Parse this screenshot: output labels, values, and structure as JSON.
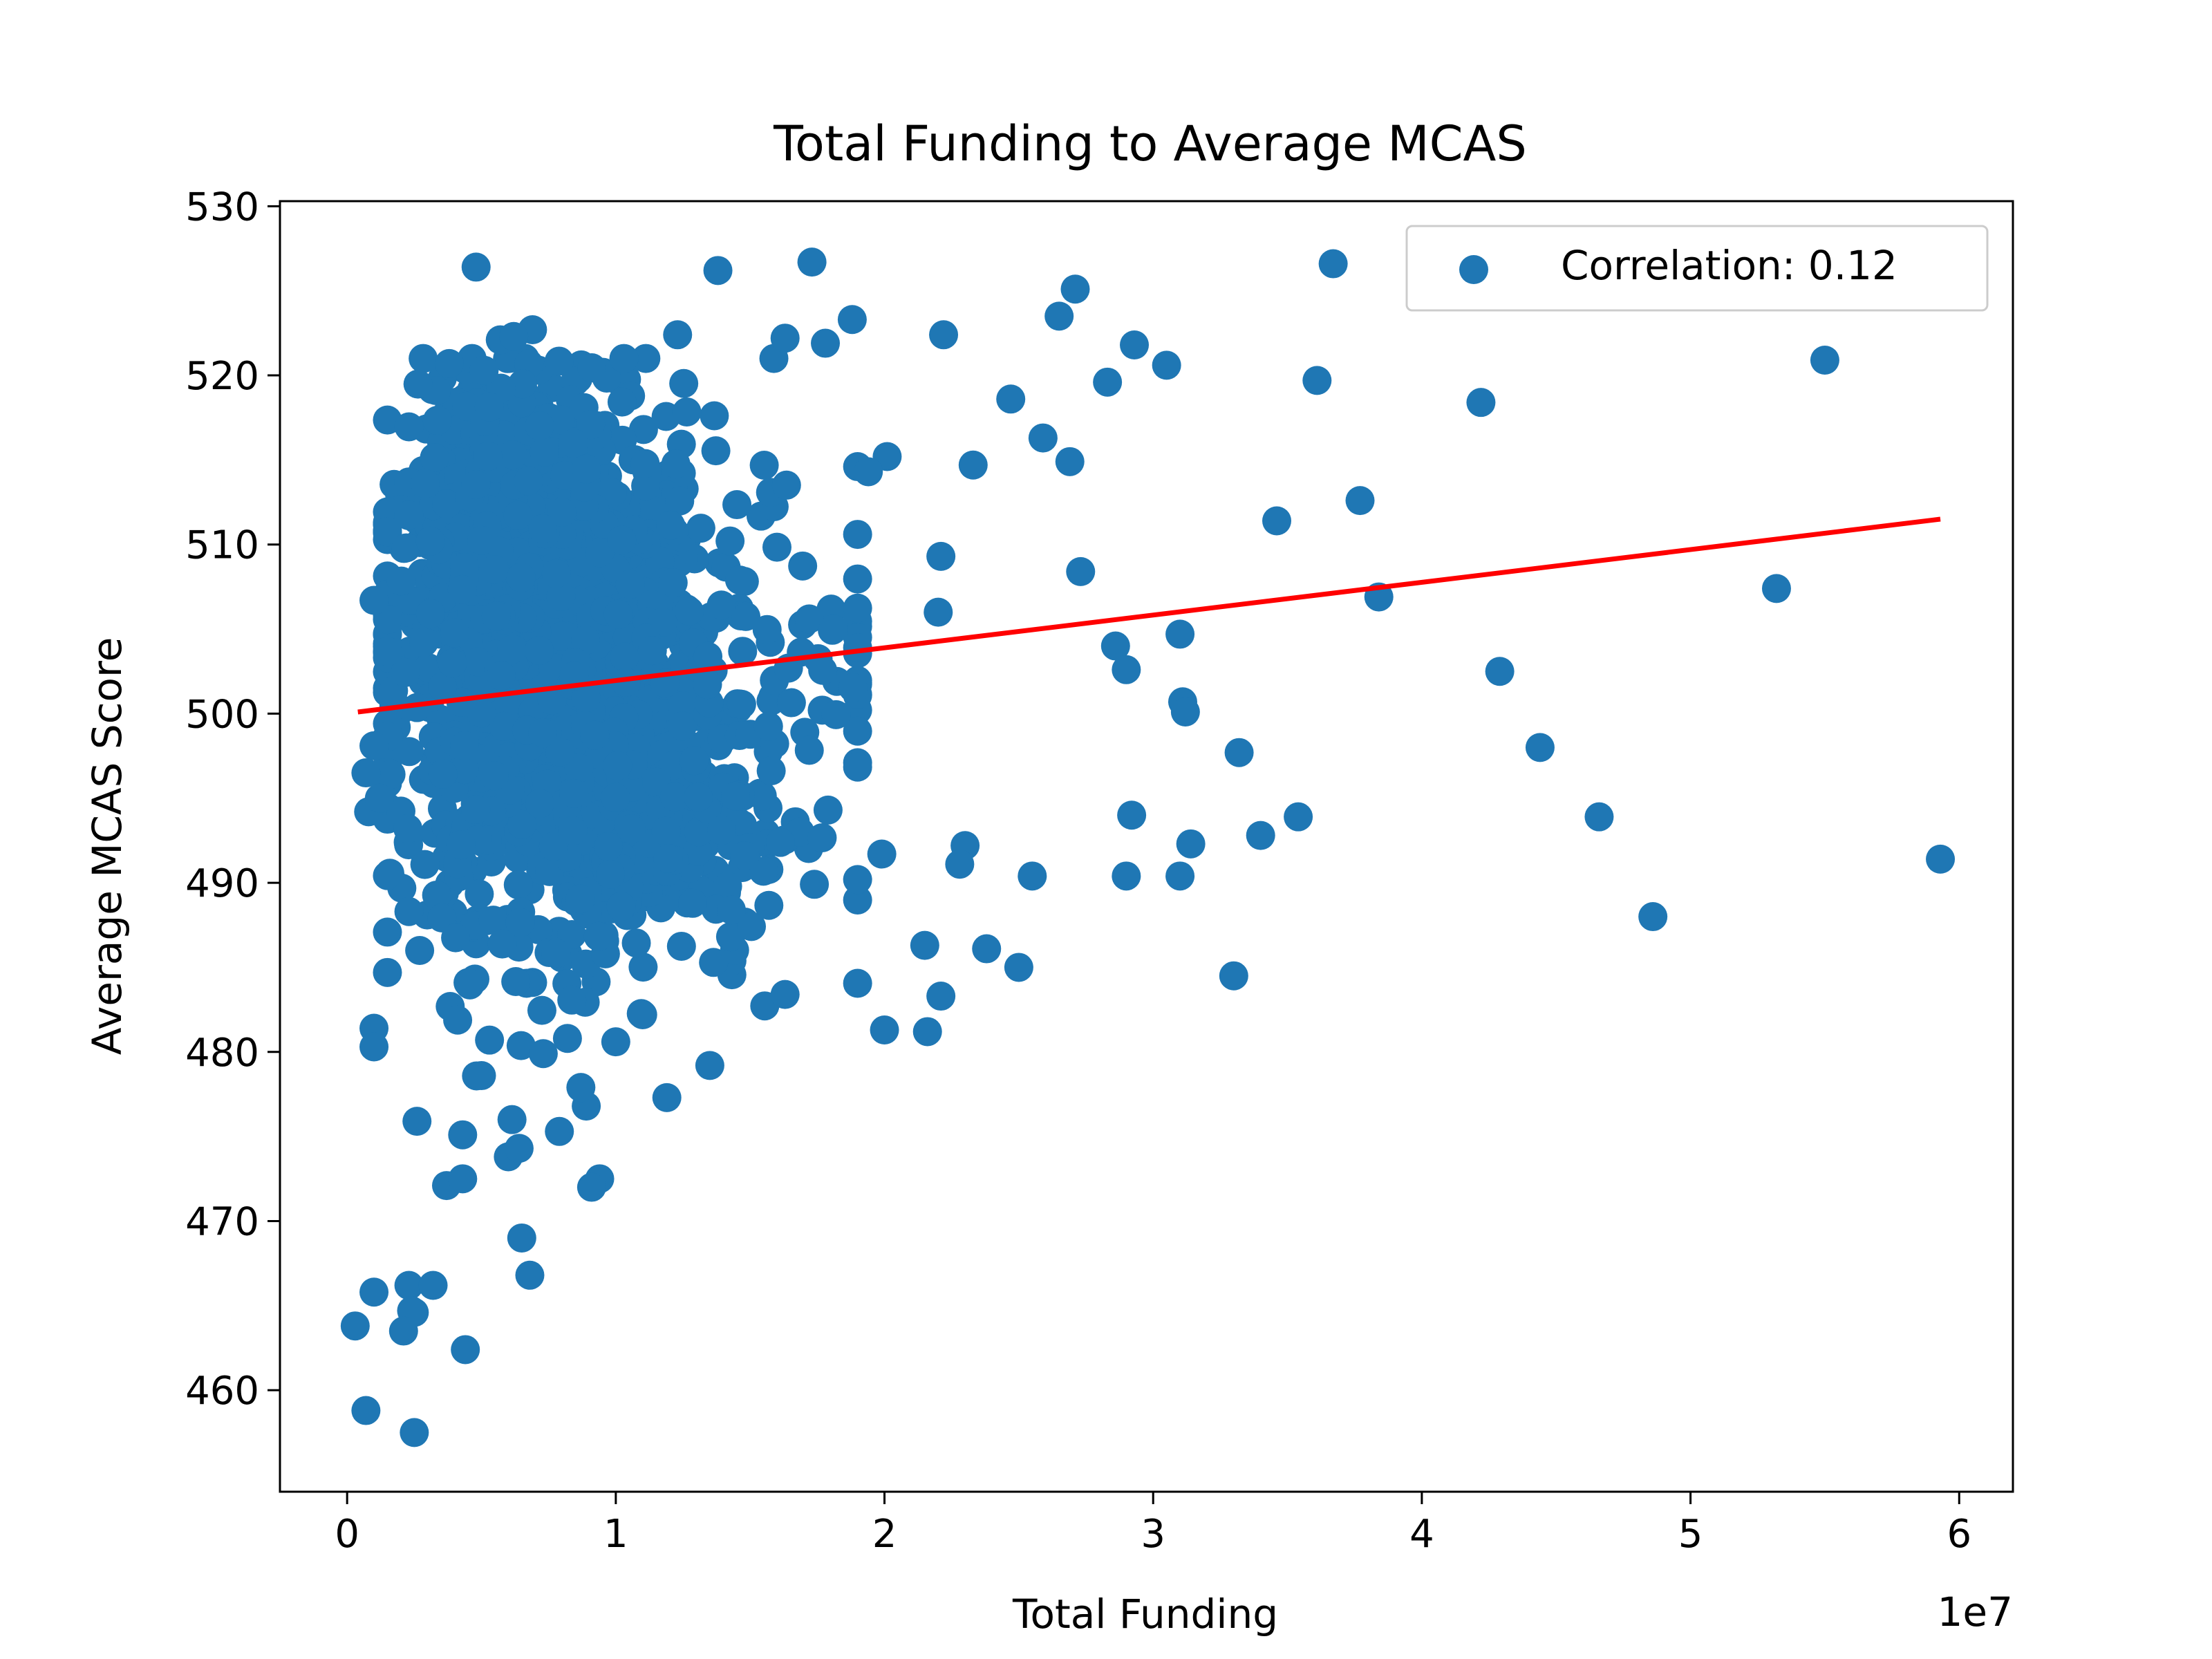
{
  "chart_data": {
    "type": "scatter",
    "title": "Total Funding to Average MCAS",
    "xlabel": "Total Funding",
    "ylabel": "Average MCAS Score",
    "x_offset_label": "1e7",
    "xlim": [
      -2500000,
      62000000
    ],
    "ylim": [
      454000,
      530300
    ],
    "x_ticks": [
      0,
      10000000,
      20000000,
      30000000,
      40000000,
      50000000,
      60000000
    ],
    "x_tick_labels": [
      "0",
      "1",
      "2",
      "3",
      "4",
      "5",
      "6"
    ],
    "y_ticks": [
      460,
      470,
      480,
      490,
      500,
      510,
      520,
      530
    ],
    "y_tick_labels": [
      "460",
      "470",
      "480",
      "490",
      "500",
      "510",
      "520",
      "530"
    ],
    "grid": false,
    "legend": {
      "placement": "top-right",
      "label": "Correlation: 0.12"
    },
    "colors": {
      "points": "#1f77b4",
      "trend": "#ff0000"
    },
    "series": [
      {
        "type": "scatter",
        "x": [
          4800000,
          13800000,
          17300000,
          36700000,
          27100000,
          6900000,
          5700000,
          12300000,
          16300000,
          26500000,
          18800000,
          22200000,
          3800000,
          6200000,
          5100000,
          17800000,
          29300000,
          30500000,
          55000000,
          36100000,
          28300000,
          24700000,
          42200000,
          2300000,
          2900000,
          25900000,
          23300000,
          26900000,
          20100000,
          19400000,
          3400000,
          2200000,
          34600000,
          37700000,
          3100000,
          1000000,
          27300000,
          53200000,
          38400000,
          22000000,
          22100000,
          31000000,
          17200000,
          19000000,
          42900000,
          18100000,
          28600000,
          29000000,
          31100000,
          31200000,
          33200000,
          44400000,
          1000000,
          700000,
          800000,
          1200000,
          29200000,
          35400000,
          46600000,
          17900000,
          34000000,
          31400000,
          23000000,
          19900000,
          22800000,
          14800000,
          59300000,
          9800000,
          25500000,
          29000000,
          31000000,
          48600000,
          2300000,
          14300000,
          2700000,
          21500000,
          23800000,
          25000000,
          22100000,
          33000000,
          16300000,
          20000000,
          21600000,
          1000000,
          10000000,
          13500000,
          1000000,
          5000000,
          11900000,
          2600000,
          4300000,
          7900000,
          6000000,
          3700000,
          4300000,
          9400000,
          9100000,
          6500000,
          6800000,
          2300000,
          1000000,
          3200000,
          2500000,
          2400000,
          2100000,
          4400000,
          300000,
          700000,
          2500000,
          8900000,
          8700000,
          8200000,
          11000000,
          4500000,
          5300000,
          6400000,
          10200000,
          7300000
        ],
        "y": [
          526400,
          526200,
          526700,
          526600,
          525100,
          522700,
          522100,
          522400,
          522200,
          523500,
          523300,
          522400,
          520700,
          522300,
          520300,
          521900,
          521800,
          520600,
          520900,
          519700,
          519600,
          518600,
          518400,
          513700,
          513600,
          516300,
          514700,
          514900,
          515200,
          514300,
          509700,
          509800,
          511400,
          512600,
          510200,
          506700,
          508400,
          507400,
          506900,
          506000,
          509300,
          504700,
          505600,
          503900,
          502500,
          505000,
          504000,
          502600,
          500700,
          500100,
          497700,
          498000,
          498100,
          496500,
          494200,
          495000,
          494000,
          493900,
          493900,
          494300,
          492800,
          492300,
          492200,
          491700,
          491100,
          491600,
          491400,
          490500,
          490400,
          490400,
          490400,
          488000,
          488300,
          488400,
          486000,
          486300,
          486100,
          485000,
          483300,
          484500,
          483400,
          481300,
          481200,
          481400,
          480600,
          479200,
          480300,
          478600,
          477300,
          475900,
          475100,
          475300,
          473800,
          472100,
          472500,
          472500,
          472000,
          469000,
          466800,
          466200,
          465800,
          466200,
          464600,
          464700,
          463500,
          462400,
          463800,
          458800,
          457500,
          476800,
          477900,
          480800,
          482200,
          484100,
          480700,
          474300,
          488600,
          479900
        ],
        "clusters": [
          {
            "center": [
              7800000,
              503000
            ],
            "spread": [
              2900000,
              7200
            ],
            "count": 1300
          },
          {
            "center": [
              5500000,
              512000
            ],
            "spread": [
              1800000,
              4200
            ],
            "count": 260
          },
          {
            "center": [
              10000000,
              494000
            ],
            "spread": [
              3200000,
              4600
            ],
            "count": 260
          },
          {
            "center": [
              17500000,
              503000
            ],
            "spread": [
              3200000,
              7500
            ],
            "count": 70
          }
        ]
      },
      {
        "type": "line",
        "x": [
          400000,
          59300000
        ],
        "y": [
          500100,
          511500
        ]
      }
    ]
  }
}
